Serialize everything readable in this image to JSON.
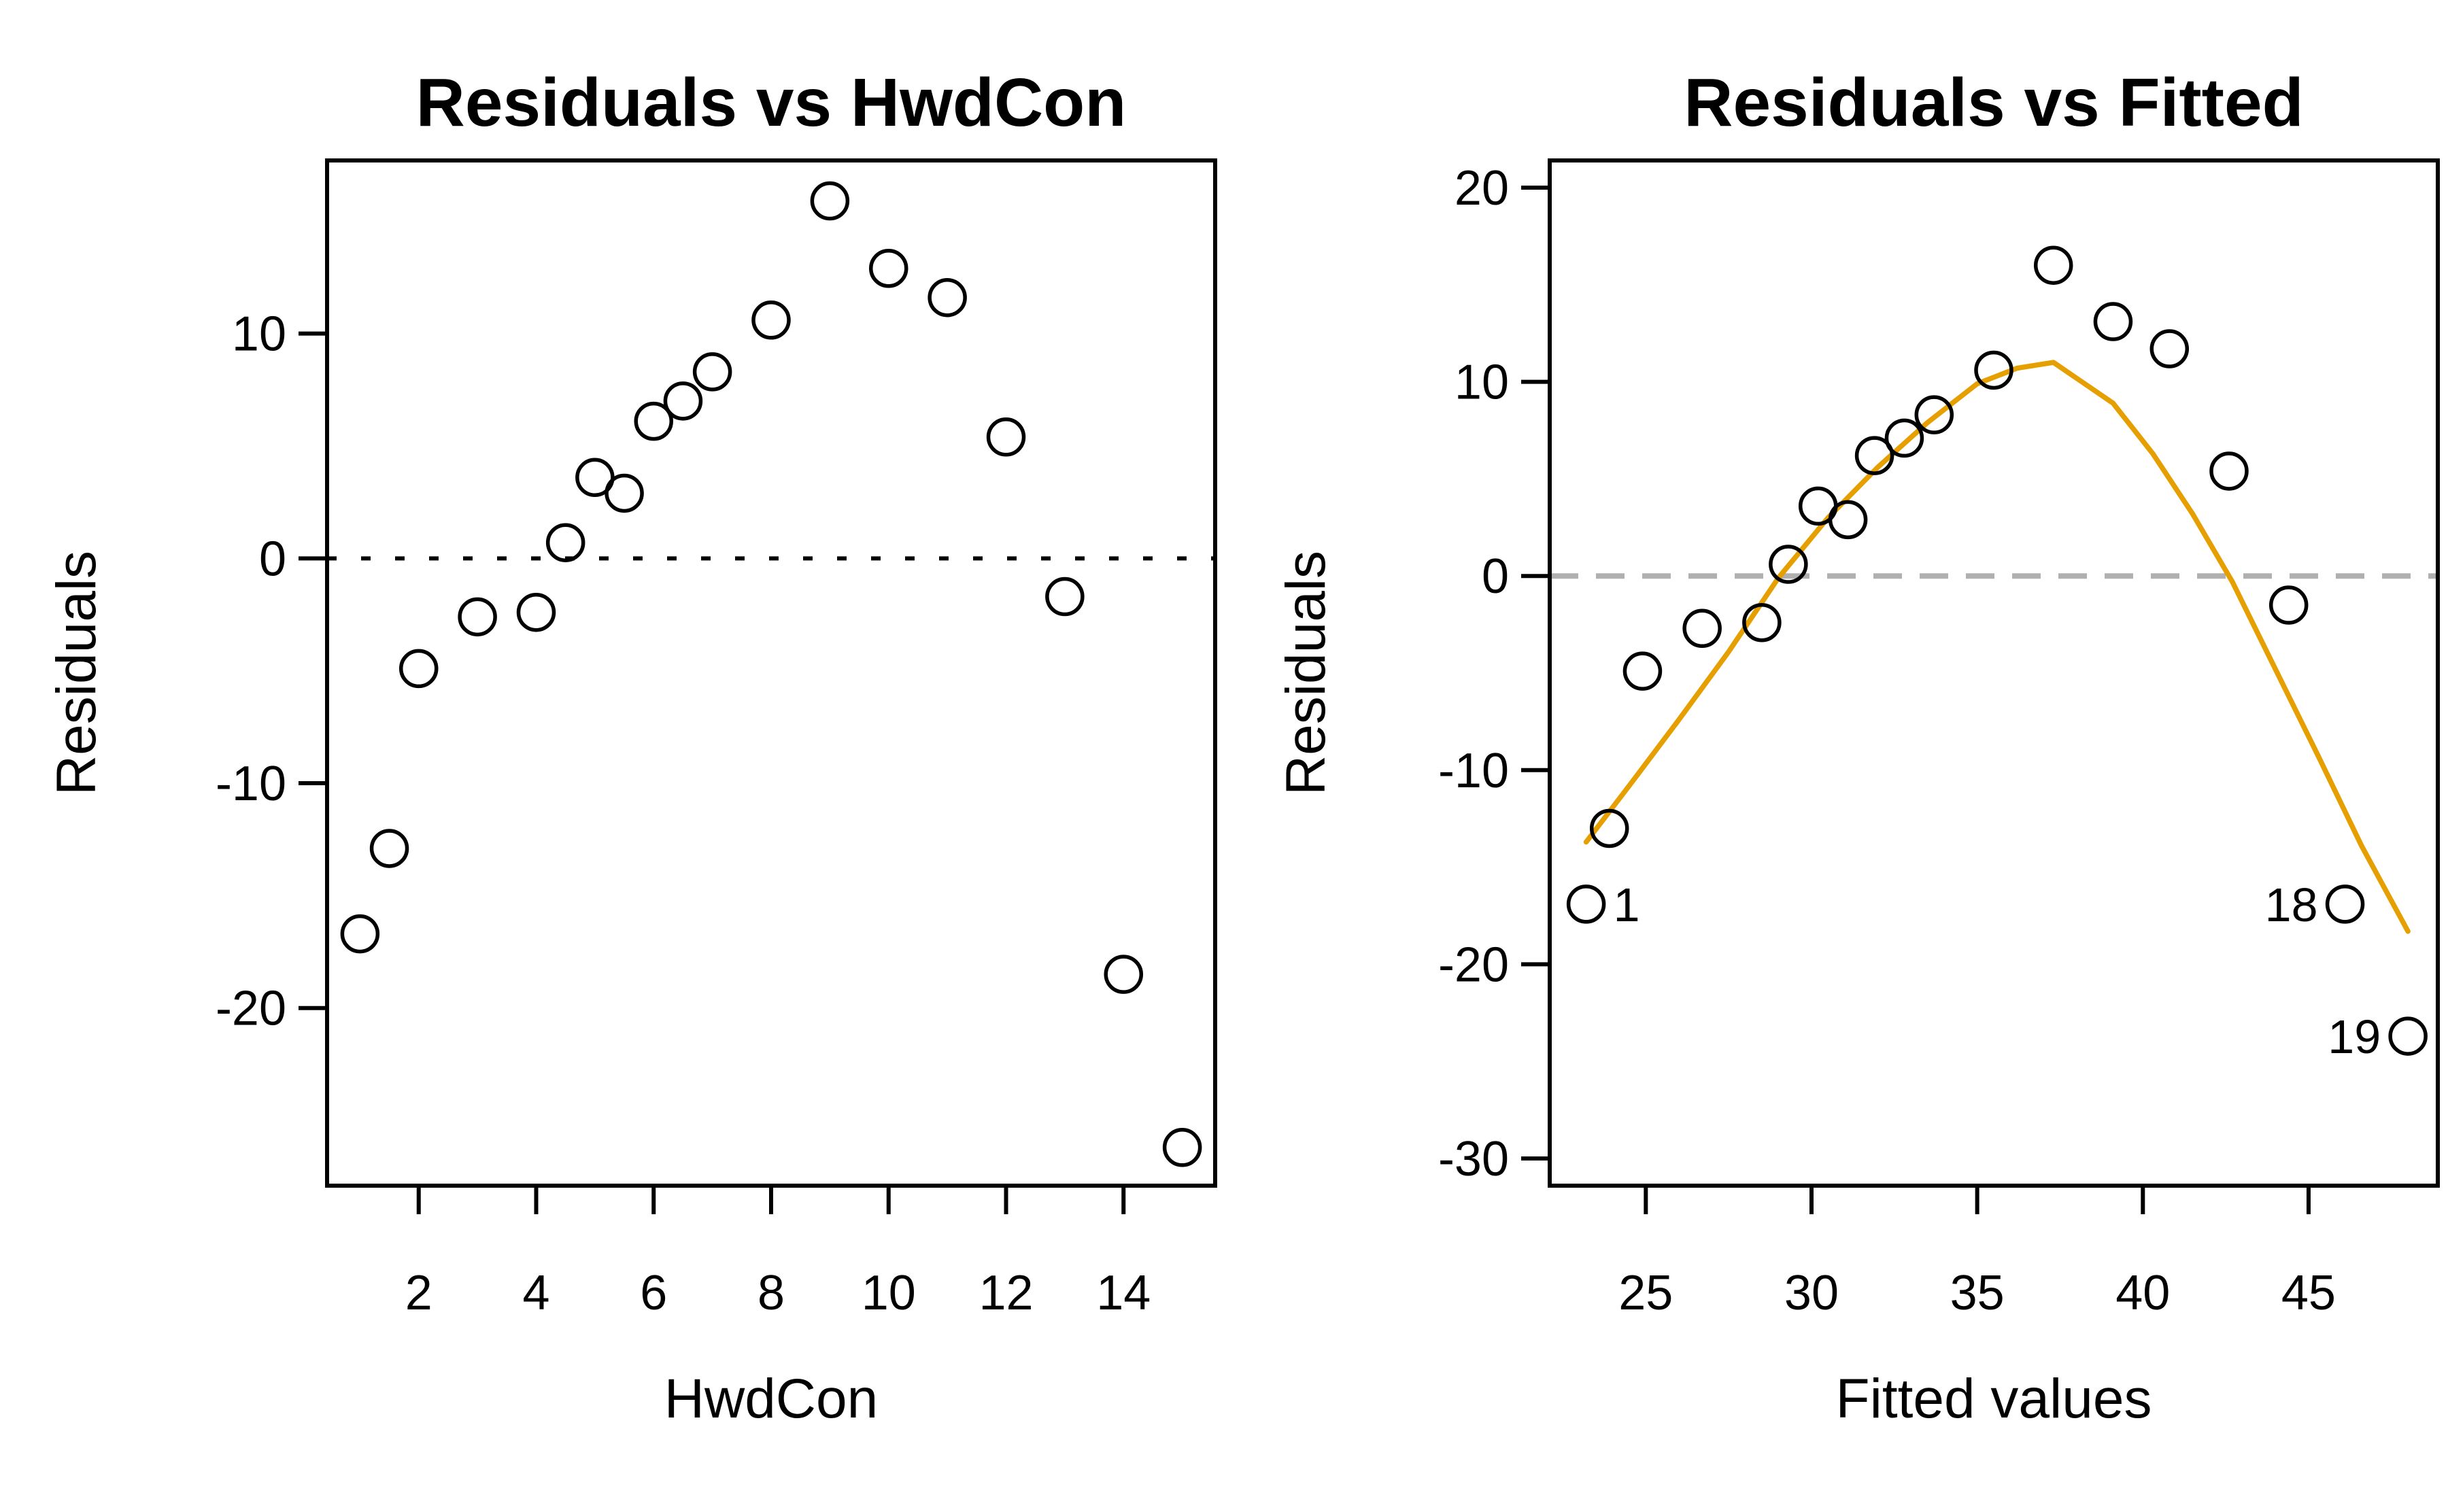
{
  "figure": {
    "background": "#ffffff",
    "point_color": "#000000",
    "box_color": "#000000"
  },
  "chart_data": [
    {
      "type": "scatter",
      "title": "Residuals vs HwdCon",
      "xlabel": "HwdCon",
      "ylabel": "Residuals",
      "x": [
        1,
        1.5,
        2,
        3,
        4,
        4.5,
        5,
        5.5,
        6,
        6.5,
        7,
        8,
        9,
        10,
        11,
        12,
        13,
        14,
        15
      ],
      "y": [
        -16.7,
        -12.9,
        -4.9,
        -2.6,
        -2.4,
        0.7,
        3.6,
        2.9,
        6.1,
        7.0,
        8.3,
        10.6,
        15.9,
        12.9,
        11.6,
        5.4,
        -1.7,
        -18.5,
        -26.2
      ],
      "xlim": [
        0.44,
        15.56
      ],
      "ylim": [
        -27.9,
        17.7
      ],
      "xticks": [
        2,
        4,
        6,
        8,
        10,
        12,
        14
      ],
      "yticks": [
        -20,
        -10,
        0,
        10
      ],
      "grid": false,
      "legend": "none",
      "zero_line": {
        "y": 0,
        "color": "#000000",
        "style": "dotted"
      },
      "point_labels": []
    },
    {
      "type": "scatter",
      "title": "Residuals vs Fitted",
      "xlabel": "Fitted values",
      "ylabel": "Residuals",
      "x": [
        23.2,
        23.9,
        24.9,
        26.7,
        28.5,
        29.3,
        30.2,
        31.1,
        31.9,
        32.8,
        33.7,
        35.5,
        37.3,
        39.1,
        40.8,
        42.6,
        44.4,
        46.1,
        48.0
      ],
      "y": [
        -16.9,
        -13.0,
        -4.9,
        -2.7,
        -2.4,
        0.6,
        3.6,
        2.9,
        6.2,
        7.1,
        8.3,
        10.6,
        16.0,
        13.1,
        11.7,
        5.4,
        -1.5,
        -16.9,
        -23.7
      ],
      "xlim": [
        22.1,
        48.9
      ],
      "ylim": [
        -31.4,
        21.4
      ],
      "xticks": [
        25,
        30,
        35,
        40,
        45
      ],
      "yticks": [
        -30,
        -20,
        -10,
        0,
        10,
        20
      ],
      "grid": false,
      "legend": "none",
      "zero_line": {
        "y": 0,
        "color": "#b0b0b0",
        "style": "dashed"
      },
      "point_labels": [
        {
          "index": 0,
          "text": "1",
          "side": "right"
        },
        {
          "index": 17,
          "text": "18",
          "side": "left"
        },
        {
          "index": 18,
          "text": "19",
          "side": "left"
        }
      ],
      "smoother": {
        "color": "#e69f00",
        "x": [
          23.2,
          24.5,
          26.0,
          27.5,
          29.0,
          30.5,
          32.0,
          33.5,
          35.0,
          36.2,
          37.3,
          39.1,
          40.3,
          41.5,
          42.7,
          44.0,
          45.3,
          46.6,
          48.0
        ],
        "y": [
          -13.7,
          -10.8,
          -7.4,
          -3.9,
          -0.1,
          3.0,
          5.6,
          7.9,
          9.9,
          10.7,
          11.0,
          8.9,
          6.3,
          3.2,
          -0.3,
          -4.8,
          -9.3,
          -13.9,
          -18.3
        ]
      }
    }
  ]
}
